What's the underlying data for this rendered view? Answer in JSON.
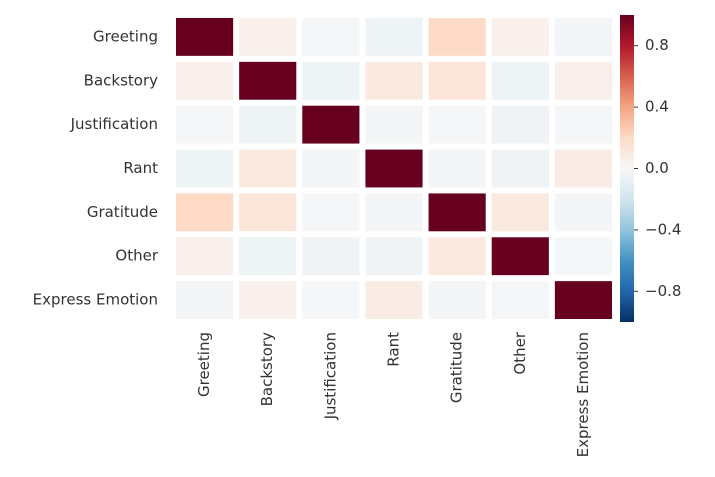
{
  "chart_data": {
    "type": "heatmap",
    "x_categories": [
      "Greeting",
      "Backstory",
      "Justification",
      "Rant",
      "Gratitude",
      "Other",
      "Express Emotion"
    ],
    "y_categories": [
      "Greeting",
      "Backstory",
      "Justification",
      "Rant",
      "Gratitude",
      "Other",
      "Express Emotion"
    ],
    "values": [
      [
        1,
        0.05,
        -0.01,
        -0.05,
        0.2,
        0.05,
        -0.02
      ],
      [
        0.05,
        1,
        -0.05,
        0.1,
        0.13,
        -0.05,
        0.05
      ],
      [
        -0.01,
        -0.05,
        1,
        -0.02,
        -0.01,
        -0.04,
        -0.01
      ],
      [
        -0.05,
        0.1,
        -0.02,
        1,
        -0.02,
        -0.04,
        0.08
      ],
      [
        0.2,
        0.13,
        -0.01,
        -0.02,
        1,
        0.1,
        -0.02
      ],
      [
        0.05,
        -0.05,
        -0.04,
        -0.04,
        0.1,
        1,
        -0.01
      ],
      [
        -0.02,
        0.05,
        -0.01,
        0.08,
        -0.02,
        -0.01,
        1
      ]
    ],
    "zlim": [
      -1,
      1
    ],
    "zticks": [
      0.8,
      0.4,
      {
        "value": 0,
        "label": "0.0"
      },
      {
        "value": -0.4,
        "label": "−0.4"
      },
      {
        "value": -0.8,
        "label": "−0.8"
      }
    ],
    "colormap": [
      "#053061",
      "#2166ac",
      "#4393c3",
      "#92c5de",
      "#d1e5f0",
      "#f7f7f7",
      "#fddbc7",
      "#f4a582",
      "#d6604d",
      "#b2182b",
      "#67001f"
    ]
  }
}
